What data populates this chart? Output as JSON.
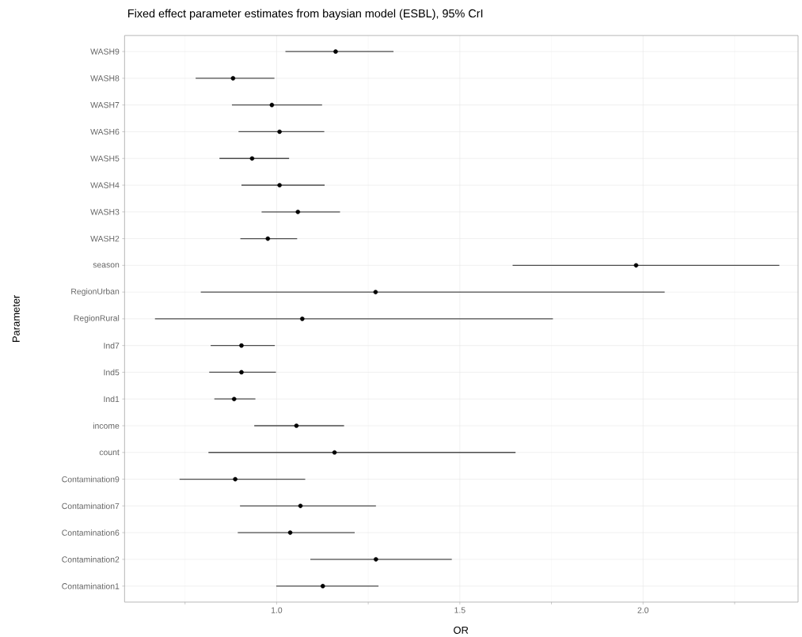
{
  "chart_data": {
    "type": "scatter",
    "title": "Fixed effect parameter estimates from baysian model (ESBL), 95% CrI",
    "xlabel": "OR",
    "ylabel": "Parameter",
    "orientation": "horizontal",
    "marker": "circle",
    "grid": true,
    "categories": [
      "WASH9",
      "WASH8",
      "WASH7",
      "WASH6",
      "WASH5",
      "WASH4",
      "WASH3",
      "WASH2",
      "season",
      "RegionUrban",
      "RegionRural",
      "Ind7",
      "Ind5",
      "Ind1",
      "income",
      "count",
      "Contamination9",
      "Contamination7",
      "Contamination6",
      "Contamination2",
      "Contamination1"
    ],
    "series": [
      {
        "color": "#000000",
        "values": [
          1.161,
          0.881,
          0.987,
          1.008,
          0.933,
          1.008,
          1.058,
          0.976,
          1.981,
          1.27,
          1.07,
          0.904,
          0.904,
          0.884,
          1.054,
          1.158,
          0.887,
          1.065,
          1.037,
          1.271,
          1.126
        ],
        "errors": [
          [
            1.024,
            1.319
          ],
          [
            0.779,
            0.994
          ],
          [
            0.878,
            1.124
          ],
          [
            0.896,
            1.13
          ],
          [
            0.844,
            1.034
          ],
          [
            0.904,
            1.131
          ],
          [
            0.959,
            1.173
          ],
          [
            0.901,
            1.056
          ],
          [
            1.644,
            2.372
          ],
          [
            0.793,
            2.059
          ],
          [
            0.668,
            1.754
          ],
          [
            0.82,
            0.995
          ],
          [
            0.816,
            0.998
          ],
          [
            0.83,
            0.942
          ],
          [
            0.939,
            1.184
          ],
          [
            0.814,
            1.652
          ],
          [
            0.735,
            1.078
          ],
          [
            0.9,
            1.271
          ],
          [
            0.894,
            1.213
          ],
          [
            1.092,
            1.478
          ],
          [
            0.999,
            1.278
          ]
        ]
      }
    ],
    "xlim": [
      0.585,
      2.423
    ],
    "xticks": [
      {
        "value": 1.0,
        "label": "1.0"
      },
      {
        "value": 1.5,
        "label": "1.5"
      },
      {
        "value": 2.0,
        "label": "2.0"
      }
    ]
  }
}
